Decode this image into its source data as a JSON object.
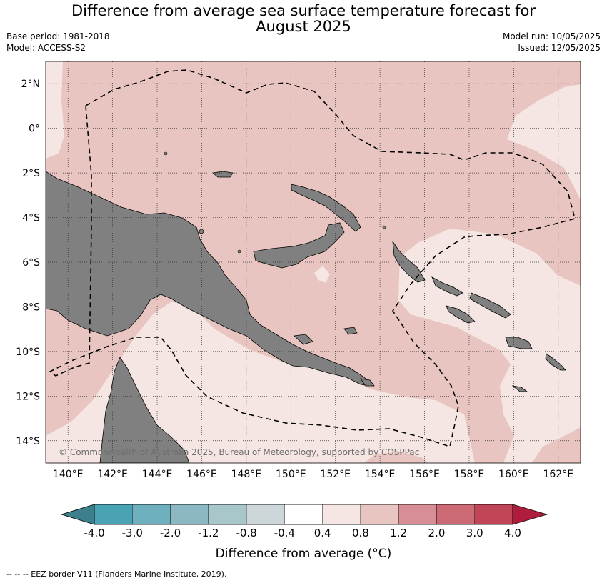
{
  "title_line1": "Difference from average sea surface temperature forecast for",
  "title_line2": "August 2025",
  "base_period": "Base period: 1981-2018",
  "model": "Model: ACCESS-S2",
  "model_run": "Model run: 10/05/2025",
  "issued": "Issued: 12/05/2025",
  "credit": "© Commonwealth of Australia 2025, Bureau of Meteorology, supported by COSPPac",
  "footnote": "--  --  -- EEZ border V11 (Flanders Marine Institute, 2019).",
  "lat_labels": [
    "2°N",
    "0°",
    "2°S",
    "4°S",
    "6°S",
    "8°S",
    "10°S",
    "12°S",
    "14°S"
  ],
  "lon_labels": [
    "140°E",
    "142°E",
    "144°E",
    "146°E",
    "148°E",
    "150°E",
    "152°E",
    "154°E",
    "156°E",
    "158°E",
    "160°E",
    "162°E"
  ],
  "colorbar": {
    "title": "Difference from average (°C)",
    "boundaries": [
      "-4.0",
      "-3.0",
      "-2.0",
      "-1.2",
      "-0.8",
      "-0.4",
      "0.4",
      "0.8",
      "1.2",
      "2.0",
      "3.0",
      "4.0"
    ],
    "colors": [
      "#3d7f8a",
      "#4aa3b4",
      "#6fb0bf",
      "#8bb8c2",
      "#a8c7cb",
      "#cdd6d8",
      "#ffffff",
      "#f5e6e3",
      "#e8c5c0",
      "#d88e96",
      "#cc6a76",
      "#c04556",
      "#b01c3c"
    ]
  },
  "colors": {
    "land": "#808080",
    "anomaly_04_08": "#f5e6e3",
    "anomaly_08_12": "#e8c5c0"
  }
}
